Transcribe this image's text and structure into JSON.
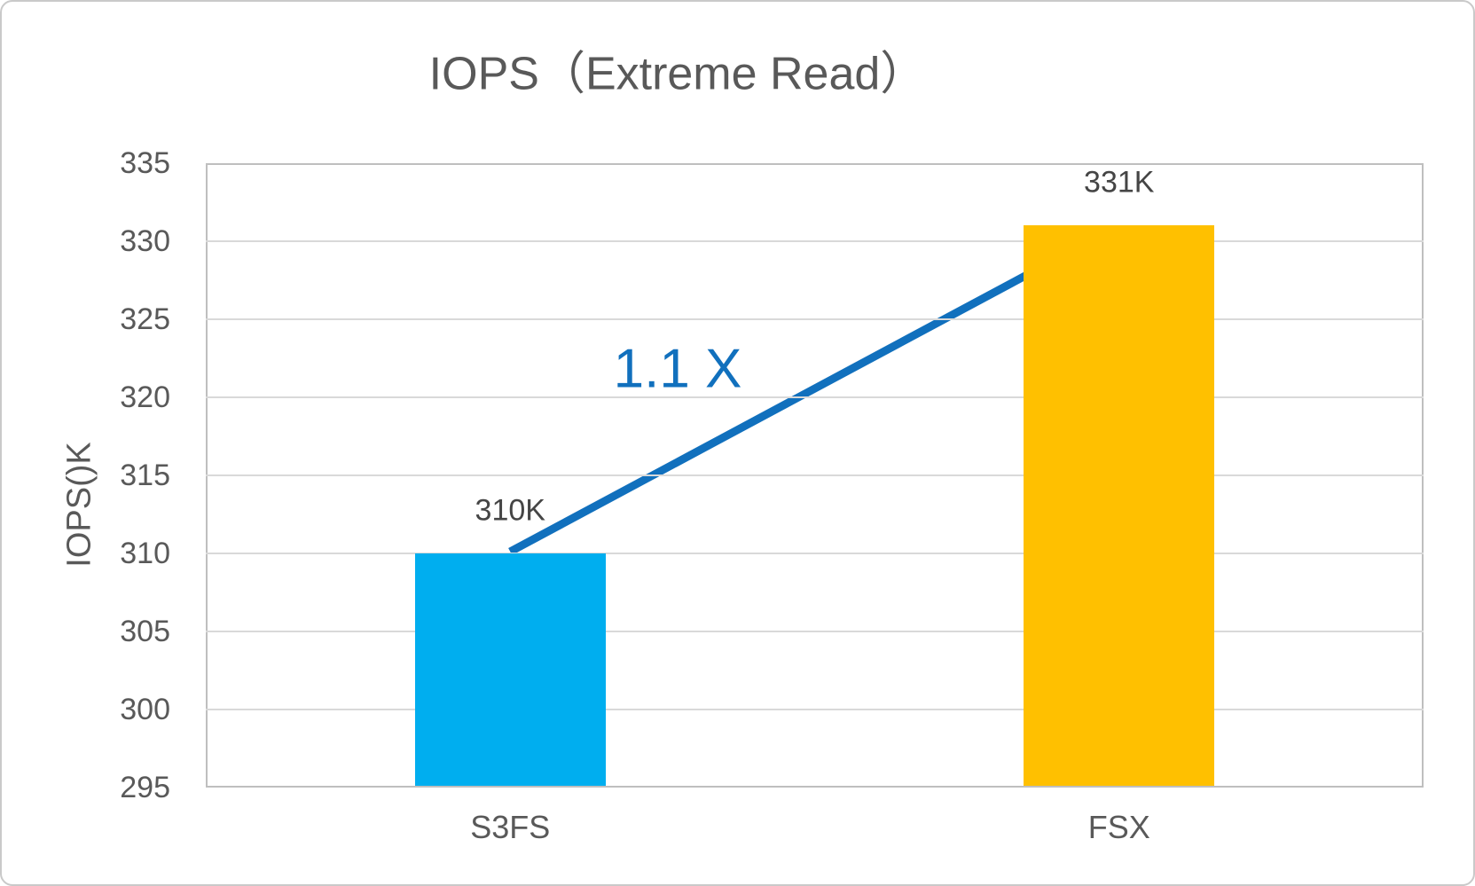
{
  "figure": {
    "background": "#ffffff",
    "border_color": "#c9c9c9"
  },
  "chart_data": {
    "type": "bar",
    "title": "IOPS（Extreme Read）",
    "xlabel": "",
    "ylabel": "IOPS()K",
    "categories": [
      "S3FS",
      "FSX"
    ],
    "values": [
      310,
      331
    ],
    "data_labels": [
      "310K",
      "331K"
    ],
    "bar_colors": [
      "#00AEEF",
      "#FFC000"
    ],
    "ylim": [
      295,
      335
    ],
    "yticks": [
      295,
      300,
      305,
      310,
      315,
      320,
      325,
      330,
      335
    ],
    "grid": true,
    "legend": "none",
    "annotation": {
      "text": "1.1 X",
      "color": "#1170BD"
    },
    "annotation_pos": [
      762,
      414
    ],
    "arrow": {
      "from_category": "S3FS",
      "to_category": "FSX",
      "color": "#1170BD"
    },
    "colors": {
      "title": "#595959",
      "axis_text": "#595959",
      "value_label": "#454545",
      "grid": "#d9d9d9",
      "plot_border": "#bfbfbf"
    }
  }
}
